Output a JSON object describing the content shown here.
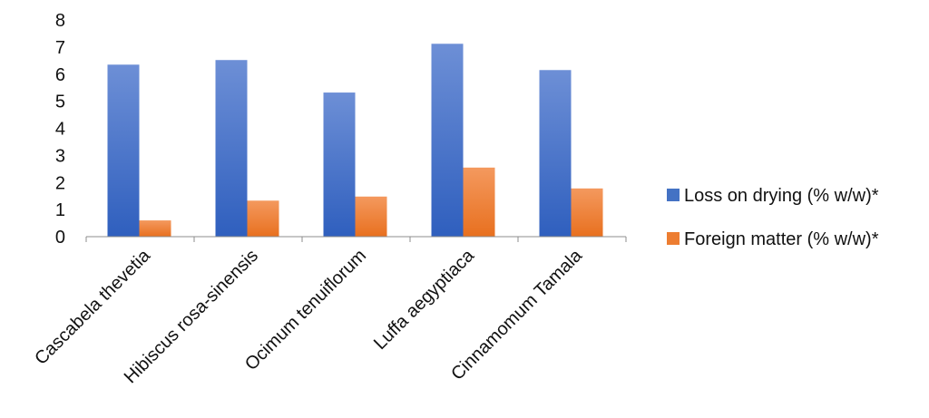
{
  "chart_data": {
    "type": "bar",
    "title": "",
    "xlabel": "",
    "ylabel": "",
    "ylim": [
      0,
      8
    ],
    "yticks": [
      0,
      1,
      2,
      3,
      4,
      5,
      6,
      7,
      8
    ],
    "grid": false,
    "legend_position": "right",
    "categories": [
      "Cascabela thevetia",
      "Hibiscus rosa-sinensis",
      "Ocimum tenuiflorum",
      "Luffa aegyptiaca",
      "Cinnamomum Tamala"
    ],
    "series": [
      {
        "name": "Loss on drying (% w/w)*",
        "color": "#4472C4",
        "values": [
          6.35,
          6.52,
          5.32,
          7.12,
          6.15
        ]
      },
      {
        "name": "Foreign matter (% w/w)*",
        "color": "#ED7D31",
        "values": [
          0.6,
          1.33,
          1.48,
          2.55,
          1.78
        ]
      }
    ]
  }
}
